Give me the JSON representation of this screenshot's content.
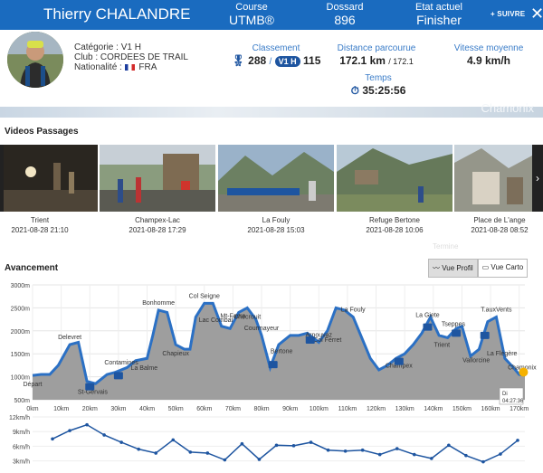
{
  "header": {
    "name": "Thierry CHALANDRE",
    "course_label": "Course",
    "course_value": "UTMB®",
    "bib_label": "Dossard",
    "bib_value": "896",
    "status_label": "Etat actuel",
    "status_value": "Finisher",
    "follow_label": "+ SUIVRE",
    "close_icon": "close-icon"
  },
  "runner": {
    "category": "Catégorie : V1 H",
    "club": "Club : CORDEES DE TRAIL",
    "nationality_label": "Nationalité :",
    "nationality_value": "FRA"
  },
  "stats": {
    "rank_label": "Classement",
    "rank_overall": "288",
    "rank_sep": "/",
    "rank_cat_badge": "V1 H",
    "rank_cat": "115",
    "distance_label": "Distance parcourue",
    "distance_value": "172.1 km",
    "distance_total": "/ 172.1",
    "speed_label": "Vitesse moyenne",
    "speed_value": "4.9 km/h",
    "time_label": "Temps",
    "time_value": "35:25:56"
  },
  "hero_text": "Chamonix",
  "videos": {
    "title": "Videos Passages",
    "items": [
      {
        "place": "Trient",
        "time": "2021-08-28 21:10"
      },
      {
        "place": "Champex-Lac",
        "time": "2021-08-28 17:29"
      },
      {
        "place": "La Fouly",
        "time": "2021-08-28 15:03"
      },
      {
        "place": "Refuge Bertone",
        "time": "2021-08-28 10:06"
      },
      {
        "place": "Place de L'ange",
        "time": "2021-08-28 08:52"
      }
    ],
    "prev_label": "‹",
    "next_label": "›",
    "overflow_label": "Termine"
  },
  "progress": {
    "title": "Avancement",
    "btn_profile": "Vue Profil",
    "btn_map": "Vue Carto",
    "tooltip": [
      "Di",
      "04:27:36"
    ]
  },
  "chart_data": [
    {
      "type": "area",
      "title": "",
      "xlabel": "",
      "ylabel": "",
      "x_ticks": [
        "0km",
        "10km",
        "20km",
        "30km",
        "40km",
        "50km",
        "60km",
        "70km",
        "80km",
        "90km",
        "100km",
        "110km",
        "120km",
        "130km",
        "140km",
        "150km",
        "160km",
        "170km"
      ],
      "y_ticks": [
        "500m",
        "1000m",
        "1500m",
        "2000m",
        "2500m",
        "3000m"
      ],
      "xlim": [
        0,
        172
      ],
      "ylim": [
        500,
        3000
      ],
      "x": [
        0,
        3,
        6,
        9,
        13,
        16,
        19,
        22,
        26,
        29,
        33,
        36,
        40,
        42,
        44,
        47,
        50,
        53,
        55,
        57,
        60,
        63,
        66,
        69,
        72,
        75,
        78,
        80,
        83,
        86,
        90,
        93,
        96,
        100,
        103,
        106,
        109,
        112,
        115,
        118,
        121,
        124,
        127,
        130,
        133,
        136,
        139,
        142,
        145,
        148,
        150,
        153,
        156,
        159,
        162,
        165,
        168,
        170,
        172
      ],
      "y": [
        1030,
        1050,
        1050,
        1250,
        1700,
        1750,
        900,
        850,
        1050,
        1100,
        1200,
        1350,
        1400,
        1900,
        2450,
        2400,
        1700,
        1600,
        1600,
        2300,
        2600,
        2600,
        2100,
        2050,
        2400,
        2500,
        2250,
        1900,
        1200,
        1700,
        1900,
        1900,
        1950,
        1750,
        2000,
        2500,
        2450,
        2300,
        1850,
        1400,
        1150,
        1250,
        1400,
        1500,
        1700,
        1950,
        2300,
        1900,
        1850,
        2050,
        2100,
        1450,
        1600,
        2200,
        2300,
        1400,
        1200,
        1050,
        1030
      ],
      "waypoints": [
        {
          "label": "Départ",
          "x": 0
        },
        {
          "label": "Delevret",
          "x": 13
        },
        {
          "label": "St-Gervais",
          "x": 21
        },
        {
          "label": "Contamines",
          "x": 31
        },
        {
          "label": "La Balme",
          "x": 39
        },
        {
          "label": "Bonhomme",
          "x": 44
        },
        {
          "label": "Chapieux",
          "x": 50
        },
        {
          "label": "Col Seigne",
          "x": 60
        },
        {
          "label": "Lac Combal",
          "x": 64
        },
        {
          "label": "Mt-Favre",
          "x": 70
        },
        {
          "label": "Checrouit",
          "x": 75
        },
        {
          "label": "Courmayeur",
          "x": 80
        },
        {
          "label": "Bertone",
          "x": 87
        },
        {
          "label": "Arnouvaz",
          "x": 100
        },
        {
          "label": "Col Ferret",
          "x": 103
        },
        {
          "label": "La Fouly",
          "x": 112
        },
        {
          "label": "Champex",
          "x": 128
        },
        {
          "label": "La Giete",
          "x": 138
        },
        {
          "label": "Trient",
          "x": 143
        },
        {
          "label": "Tseppes",
          "x": 147
        },
        {
          "label": "Vallorcine",
          "x": 155
        },
        {
          "label": "T.auxVents",
          "x": 162
        },
        {
          "label": "La Flégère",
          "x": 164
        },
        {
          "label": "Chamonix",
          "x": 171
        }
      ]
    },
    {
      "type": "line",
      "title": "",
      "y_ticks": [
        "3km/h",
        "6km/h",
        "9km/h",
        "12km/h"
      ],
      "ylim": [
        2,
        12
      ],
      "series": [
        {
          "values": [
            7.5,
            9.2,
            10.4,
            8.3,
            6.8,
            5.4,
            4.6,
            7.3,
            4.8,
            4.6,
            3.2,
            6.5,
            3.3,
            6.2,
            6.1,
            6.8,
            5.2,
            5.0,
            5.2,
            4.3,
            5.5,
            4.3,
            3.5,
            6.2,
            4.1,
            2.8,
            4.4,
            7.2
          ]
        }
      ]
    }
  ],
  "colors": {
    "brand": "#1a6bbf",
    "accent": "#3a7cc8",
    "area_fill": "#9e9e9e",
    "line": "#2b70c4",
    "marker": "#f5b100"
  }
}
